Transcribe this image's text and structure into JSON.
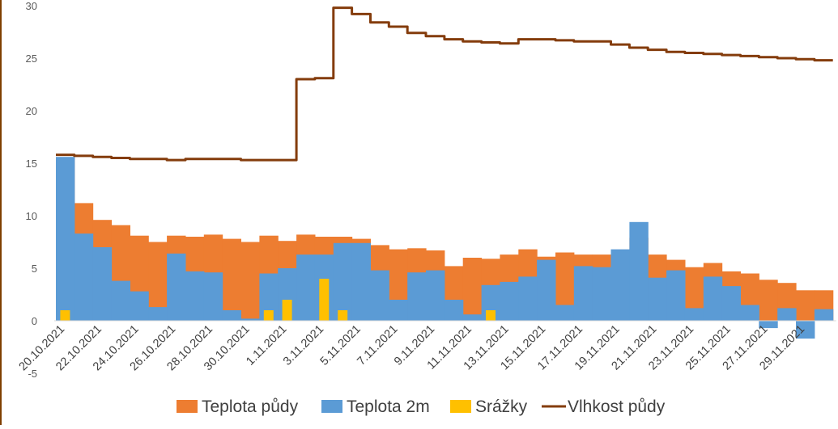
{
  "colors": {
    "soil_temp": "#ED7D31",
    "air_temp": "#5B9BD5",
    "rain": "#FFC000",
    "moisture": "#843C0C",
    "axis": "#D9D9D9",
    "left_border": "#7F3F00"
  },
  "chart_data": {
    "type": "area",
    "ylim": [
      -5,
      30
    ],
    "y_ticks": [
      "30",
      "25",
      "20",
      "15",
      "10",
      "5",
      "0",
      "-5"
    ],
    "y_tick_values": [
      30,
      25,
      20,
      15,
      10,
      5,
      0,
      -5
    ],
    "x_labels": [
      "20.10.2021",
      "22.10.2021",
      "24.10.2021",
      "26.10.2021",
      "28.10.2021",
      "30.10.2021",
      "1.11.2021",
      "3.11.2021",
      "5.11.2021",
      "7.11.2021",
      "9.11.2021",
      "11.11.2021",
      "13.11.2021",
      "15.11.2021",
      "17.11.2021",
      "19.11.2021",
      "21.11.2021",
      "23.11.2021",
      "25.11.2021",
      "27.11.2021",
      "29.11.2021"
    ],
    "dates": [
      "20.10.2021",
      "21.10.2021",
      "22.10.2021",
      "23.10.2021",
      "24.10.2021",
      "25.10.2021",
      "26.10.2021",
      "27.10.2021",
      "28.10.2021",
      "29.10.2021",
      "30.10.2021",
      "31.10.2021",
      "1.11.2021",
      "2.11.2021",
      "3.11.2021",
      "4.11.2021",
      "5.11.2021",
      "6.11.2021",
      "7.11.2021",
      "8.11.2021",
      "9.11.2021",
      "10.11.2021",
      "11.11.2021",
      "12.11.2021",
      "13.11.2021",
      "14.11.2021",
      "15.11.2021",
      "16.11.2021",
      "17.11.2021",
      "18.11.2021",
      "19.11.2021",
      "20.11.2021",
      "21.11.2021",
      "22.11.2021",
      "23.11.2021",
      "24.11.2021",
      "25.11.2021",
      "26.11.2021",
      "27.11.2021",
      "28.11.2021",
      "29.11.2021",
      "30.11.2021"
    ],
    "series": [
      {
        "name": "Teplota půdy",
        "type": "area",
        "color": "#ED7D31",
        "values": [
          15.5,
          11.2,
          9.6,
          9.1,
          8.1,
          7.5,
          8.1,
          8.0,
          8.2,
          7.8,
          7.5,
          8.1,
          7.6,
          8.2,
          8.0,
          8.0,
          7.8,
          7.2,
          6.8,
          6.9,
          6.7,
          5.2,
          6.0,
          5.9,
          6.3,
          6.8,
          6.1,
          6.5,
          6.3,
          6.3,
          6.2,
          7.9,
          6.3,
          5.8,
          5.1,
          5.5,
          4.7,
          4.5,
          3.9,
          3.6,
          2.9,
          2.9
        ]
      },
      {
        "name": "Teplota 2m",
        "type": "area",
        "color": "#5B9BD5",
        "values": [
          15.6,
          8.3,
          7.0,
          3.8,
          2.8,
          1.3,
          6.4,
          4.7,
          4.6,
          1.0,
          0.2,
          4.5,
          5.0,
          6.3,
          6.3,
          7.4,
          7.4,
          4.8,
          2.0,
          4.6,
          4.8,
          2.0,
          0.6,
          3.4,
          3.7,
          4.2,
          5.8,
          1.5,
          5.2,
          5.1,
          6.8,
          9.4,
          4.1,
          4.8,
          1.2,
          4.2,
          3.3,
          1.5,
          -0.7,
          1.2,
          -1.7,
          1.1
        ]
      },
      {
        "name": "Srážky",
        "type": "bar",
        "color": "#FFC000",
        "values": [
          1.0,
          0,
          0,
          0,
          0,
          0,
          0,
          0,
          0,
          0,
          0,
          1.0,
          2.0,
          0,
          4.0,
          1.0,
          0,
          0,
          0,
          0,
          0,
          0,
          0,
          1.0,
          0,
          0,
          0,
          0,
          0,
          0,
          0,
          0,
          0,
          0,
          0,
          0,
          0,
          0,
          0,
          0,
          0,
          0
        ]
      },
      {
        "name": "Vlhkost půdy",
        "type": "line",
        "color": "#843C0C",
        "values": [
          15.8,
          15.7,
          15.6,
          15.5,
          15.4,
          15.4,
          15.3,
          15.4,
          15.4,
          15.4,
          15.3,
          15.3,
          15.3,
          23.0,
          23.1,
          29.8,
          29.2,
          28.4,
          28.0,
          27.4,
          27.1,
          26.8,
          26.6,
          26.5,
          26.4,
          26.8,
          26.8,
          26.7,
          26.6,
          26.6,
          26.3,
          26.0,
          25.8,
          25.6,
          25.5,
          25.4,
          25.3,
          25.2,
          25.1,
          25.0,
          24.9,
          24.8
        ]
      }
    ],
    "legend_position": "bottom",
    "grid": false
  }
}
